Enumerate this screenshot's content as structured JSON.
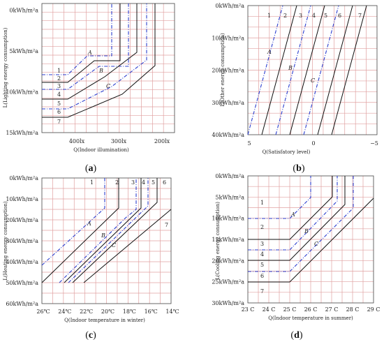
{
  "chart_data": [
    {
      "type": "line",
      "panel_label": "a",
      "xlabel": "Q(Indoor illumination)",
      "ylabel": "L(Lighting energy consumption)",
      "x_ticks": [
        "400lx",
        "300lx",
        "200lx"
      ],
      "y_ticks": [
        "0kWh/m²a",
        "5kWh/m²a",
        "10kWh/m²a",
        "15kWh/m²a"
      ],
      "curve_numbers": [
        "1",
        "2",
        "3",
        "4",
        "5",
        "6",
        "7"
      ],
      "curve_letters": [
        "A",
        "B",
        "C"
      ],
      "legend_labels": {
        "A": "A",
        "B": "B",
        "C": "C"
      }
    },
    {
      "type": "line",
      "panel_label": "b",
      "xlabel": "Q(Satisfatory level)",
      "ylabel": "L(Other energy consumption)",
      "x_ticks": [
        "5",
        "0",
        "−5"
      ],
      "y_ticks": [
        "0kWh/m²a",
        "10kWh/m²a",
        "20kWh/m²a",
        "30kWh/m²a",
        "40kWh/m²a"
      ],
      "curve_numbers": [
        "1",
        "2",
        "3",
        "4",
        "5",
        "6",
        "7"
      ],
      "curve_letters": [
        "A",
        "B",
        "C"
      ]
    },
    {
      "type": "line",
      "panel_label": "c",
      "xlabel": "Q(Indoor temperature in winter)",
      "ylabel": "L(Heating energy consumption)",
      "x_ticks": [
        "26℃",
        "24℃",
        "22℃",
        "20℃",
        "18℃",
        "16℃",
        "14℃"
      ],
      "y_ticks": [
        "0kWh/m²a",
        "10kWh/m²a",
        "20kWh/m²a",
        "30kWh/m²a",
        "40kWh/m²a",
        "50kWh/m²a",
        "60kWh/m²a"
      ],
      "curve_numbers": [
        "1",
        "2",
        "3",
        "4",
        "5",
        "6",
        "7"
      ],
      "curve_letters": [
        "A",
        "B",
        "C"
      ]
    },
    {
      "type": "line",
      "panel_label": "d",
      "xlabel": "Q(Indoor temperature in summer)",
      "ylabel": "L(Cooling energy consumption)",
      "x_ticks": [
        "23 C",
        "24 C",
        "25 C",
        "26 C",
        "27 C",
        "28 C",
        "29 C"
      ],
      "y_ticks": [
        "0kWh/m²a",
        "5kWh/m²a",
        "10kWh/m²a",
        "15kWh/m²a",
        "20kWh/m²a",
        "25kWh/m²a",
        "30kWh/m²a"
      ],
      "curve_numbers": [
        "1",
        "2",
        "3",
        "4",
        "5",
        "6",
        "7"
      ],
      "curve_letters": [
        "A",
        "B",
        "C"
      ]
    }
  ],
  "colors": {
    "grid": "#e0a0a0",
    "frame": "#444444",
    "solid_curve": "#111111",
    "dashed_curve": "#2c3fcf"
  }
}
